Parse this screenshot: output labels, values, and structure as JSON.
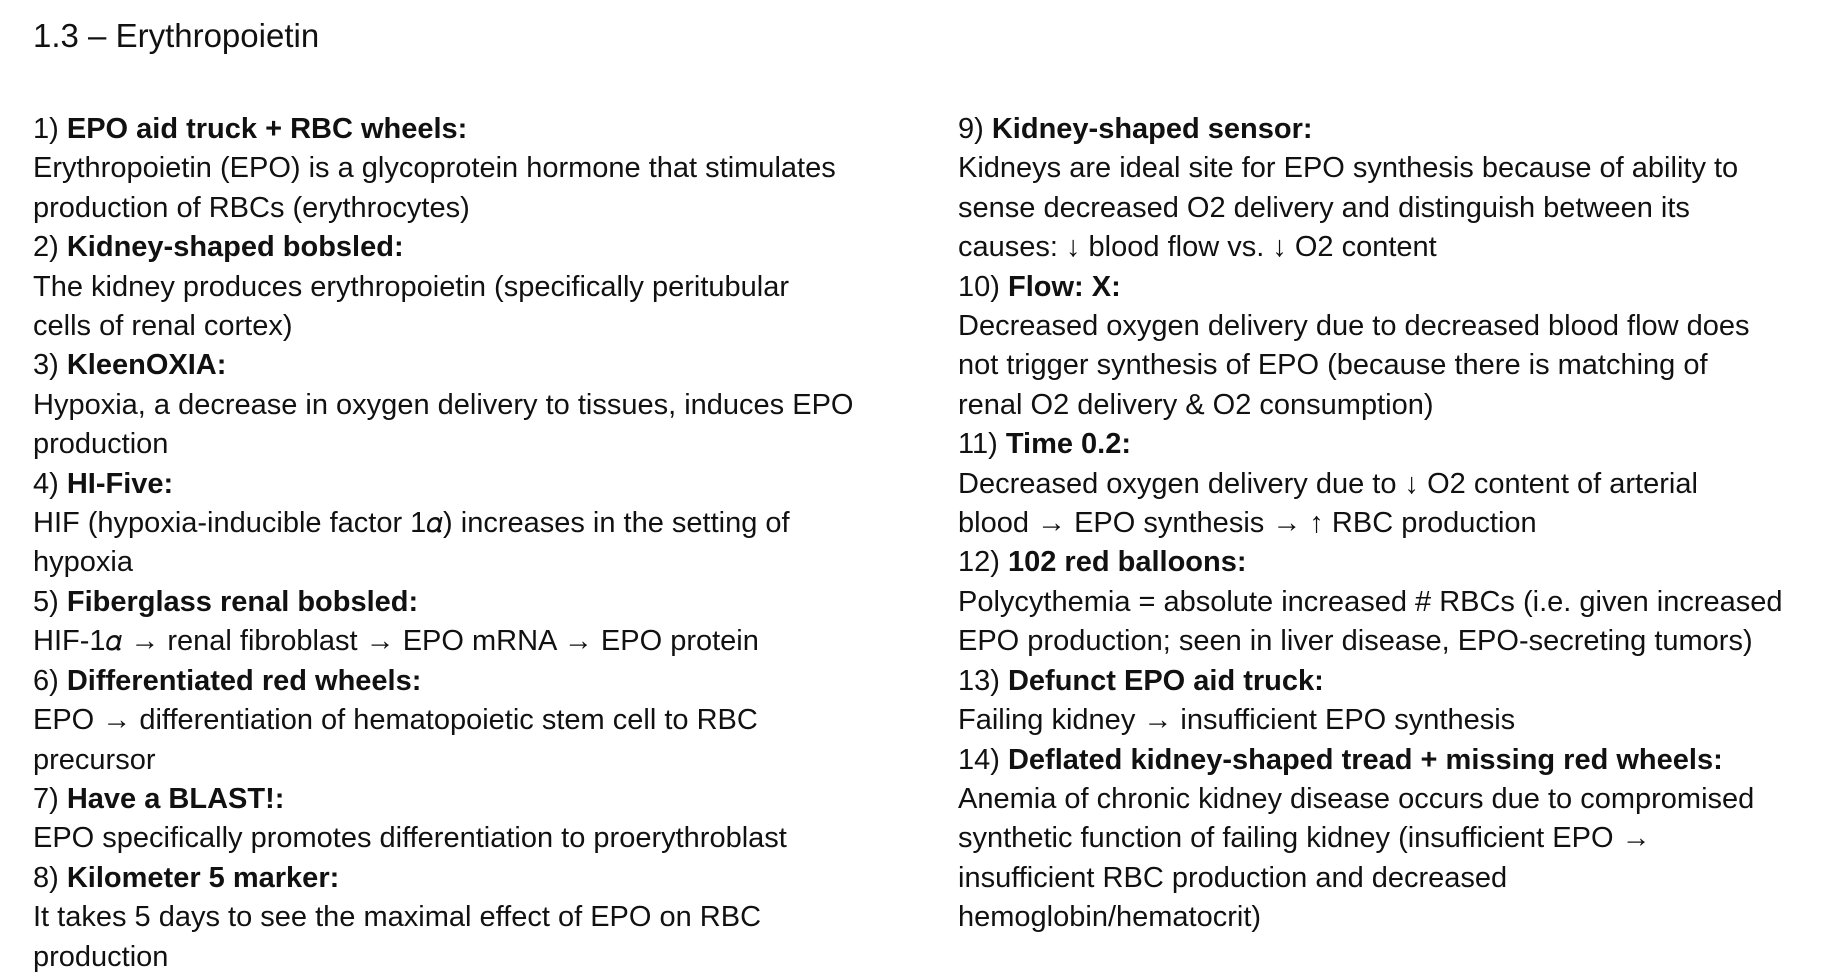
{
  "title": "1.3 – Erythropoietin",
  "left_items": [
    {
      "num": "1)",
      "term": "EPO aid truck + RBC wheels:",
      "line1": "Erythropoietin (EPO) is a glycoprotein hormone that stimulates",
      "line2": "production of RBCs (erythrocytes)"
    },
    {
      "num": "2)",
      "term": "Kidney-shaped bobsled:",
      "line1": "The kidney produces erythropoietin (specifically peritubular",
      "line2": "cells of renal cortex)"
    },
    {
      "num": "3)",
      "term": "KleenOXIA:",
      "line1": "Hypoxia, a decrease in oxygen delivery to tissues, induces EPO",
      "line2": "production"
    },
    {
      "num": "4)",
      "term": "HI-Five:",
      "line1": "HIF (hypoxia-inducible factor 1𝛼) increases in the setting of",
      "line2": "hypoxia"
    },
    {
      "num": "5)",
      "term": "Fiberglass renal bobsled:",
      "line1": "HIF-1𝛼 → renal fibroblast → EPO mRNA → EPO protein",
      "line2": ""
    },
    {
      "num": "6)",
      "term": "Differentiated red wheels:",
      "line1": "EPO → differentiation of hematopoietic stem cell to RBC",
      "line2": "precursor"
    },
    {
      "num": "7)",
      "term": "Have a BLAST!:",
      "line1": "EPO specifically promotes differentiation to proerythroblast",
      "line2": ""
    },
    {
      "num": "8)",
      "term": "Kilometer 5 marker:",
      "line1": "It takes 5 days to see the maximal effect of EPO on RBC",
      "line2": "production"
    }
  ],
  "right_items": [
    {
      "num": "9)",
      "term": "Kidney-shaped sensor:",
      "line1": "Kidneys are ideal site for EPO synthesis because of ability to",
      "line2": "sense decreased O2 delivery and distinguish between its",
      "line3": "causes: ↓ blood flow vs. ↓ O2 content"
    },
    {
      "num": "10)",
      "term": "Flow: X:",
      "line1": "Decreased oxygen delivery due to decreased blood flow does",
      "line2": "not trigger synthesis of EPO (because there is matching of",
      "line3": "renal O2 delivery & O2 consumption)"
    },
    {
      "num": "11)",
      "term": "Time 0.2:",
      "line1": "Decreased oxygen delivery due to ↓ O2 content of arterial",
      "line2": "blood → EPO synthesis → ↑ RBC production",
      "line3": ""
    },
    {
      "num": "12)",
      "term": "102 red balloons:",
      "line1": "Polycythemia = absolute increased # RBCs (i.e. given increased",
      "line2": "EPO production; seen in liver disease, EPO-secreting tumors)",
      "line3": ""
    },
    {
      "num": "13)",
      "term": "Defunct EPO aid truck:",
      "line1": "Failing kidney → insufficient EPO synthesis",
      "line2": "",
      "line3": ""
    },
    {
      "num": "14)",
      "term": "Deflated kidney-shaped tread + missing red wheels:",
      "line1": "Anemia of chronic kidney disease occurs due to compromised",
      "line2": "synthetic function of failing kidney (insufficient EPO →",
      "line3": "insufficient RBC production and decreased",
      "line4": "hemoglobin/hematocrit)"
    }
  ]
}
